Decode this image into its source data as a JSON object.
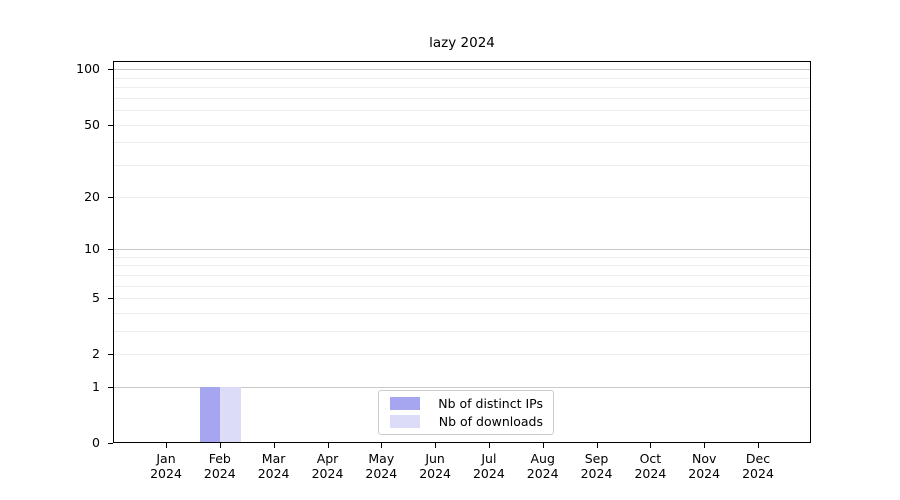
{
  "figure": {
    "title": "lazy 2024"
  },
  "legend": {
    "items": [
      {
        "label": "Nb of distinct IPs",
        "color": "#a5a5f0"
      },
      {
        "label": "Nb of downloads",
        "color": "#dcdcf8"
      }
    ]
  },
  "chart_data": {
    "type": "bar",
    "title": "lazy 2024",
    "categories": [
      "Jan 2024",
      "Feb 2024",
      "Mar 2024",
      "Apr 2024",
      "May 2024",
      "Jun 2024",
      "Jul 2024",
      "Aug 2024",
      "Sep 2024",
      "Oct 2024",
      "Nov 2024",
      "Dec 2024"
    ],
    "xtick_months": [
      "Jan",
      "Feb",
      "Mar",
      "Apr",
      "May",
      "Jun",
      "Jul",
      "Aug",
      "Sep",
      "Oct",
      "Nov",
      "Dec"
    ],
    "xtick_year": "2024",
    "series": [
      {
        "name": "Nb of distinct IPs",
        "color": "#a5a5f0",
        "values": [
          0,
          1,
          0,
          0,
          0,
          0,
          0,
          0,
          0,
          0,
          0,
          0
        ]
      },
      {
        "name": "Nb of downloads",
        "color": "#dcdcf8",
        "values": [
          0,
          1,
          0,
          0,
          0,
          0,
          0,
          0,
          0,
          0,
          0,
          0
        ]
      }
    ],
    "yscale": "log1p",
    "ylim": [
      0,
      111
    ],
    "yticks": [
      0,
      1,
      2,
      5,
      10,
      20,
      50,
      100
    ],
    "yticks_major_grid": [
      1,
      10,
      100
    ],
    "yticks_minor": [
      3,
      4,
      6,
      7,
      8,
      9,
      30,
      40,
      60,
      70,
      80,
      90
    ],
    "grid": "horizontal",
    "legend_position": "lower center",
    "colors": {
      "grid_major": "#c9c9c9",
      "grid_minor": "#ededed",
      "axis": "#000000",
      "background": "#ffffff"
    }
  }
}
